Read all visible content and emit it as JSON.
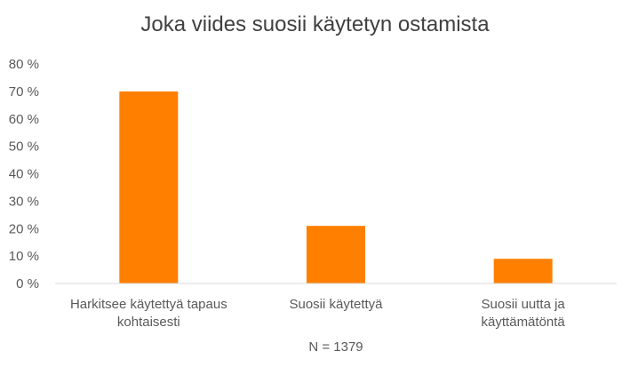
{
  "chart_data": {
    "type": "bar",
    "title": "Joka viides suosii käytetyn ostamista",
    "categories": [
      [
        "Harkitsee käytettyä tapaus",
        "kohtaisesti"
      ],
      [
        "Suosii käytettyä"
      ],
      [
        "Suosii uutta ja",
        "käyttämätöntä"
      ]
    ],
    "values": [
      70,
      21,
      9
    ],
    "ylim": [
      0,
      80
    ],
    "ytick_step": 10,
    "ytick_suffix": " %",
    "bar_color": "#FF8000",
    "grid": false,
    "xlabel": "N = 1379",
    "ylabel": ""
  }
}
